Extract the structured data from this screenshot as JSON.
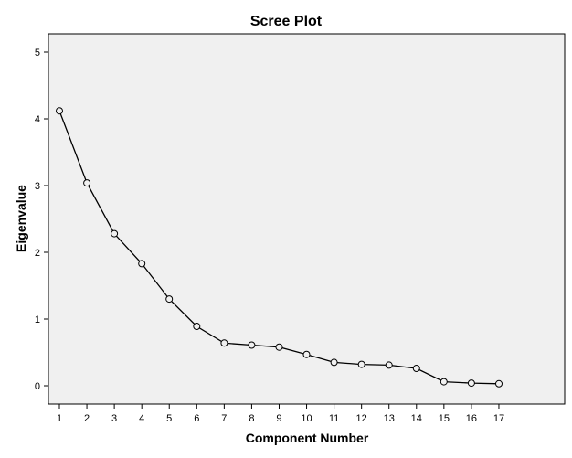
{
  "chart_data": {
    "type": "line",
    "title": "Scree Plot",
    "xlabel": "Component Number",
    "ylabel": "Eigenvalue",
    "x": [
      1,
      2,
      3,
      4,
      5,
      6,
      7,
      8,
      9,
      10,
      11,
      12,
      13,
      14,
      15,
      16,
      17
    ],
    "values": [
      4.12,
      3.04,
      2.28,
      1.83,
      1.3,
      0.89,
      0.64,
      0.61,
      0.58,
      0.47,
      0.35,
      0.32,
      0.31,
      0.26,
      0.06,
      0.04,
      0.03
    ],
    "xlim": [
      0,
      18
    ],
    "ylim": [
      0,
      5
    ],
    "xticks": [
      "1",
      "2",
      "3",
      "4",
      "5",
      "6",
      "7",
      "8",
      "9",
      "10",
      "11",
      "12",
      "13",
      "14",
      "15",
      "16",
      "17"
    ],
    "yticks": [
      "0",
      "1",
      "2",
      "3",
      "4",
      "5"
    ],
    "grid": false,
    "colors": {
      "plot_background": "#f0f0f0",
      "line": "#000000",
      "marker_stroke": "#000000"
    }
  }
}
